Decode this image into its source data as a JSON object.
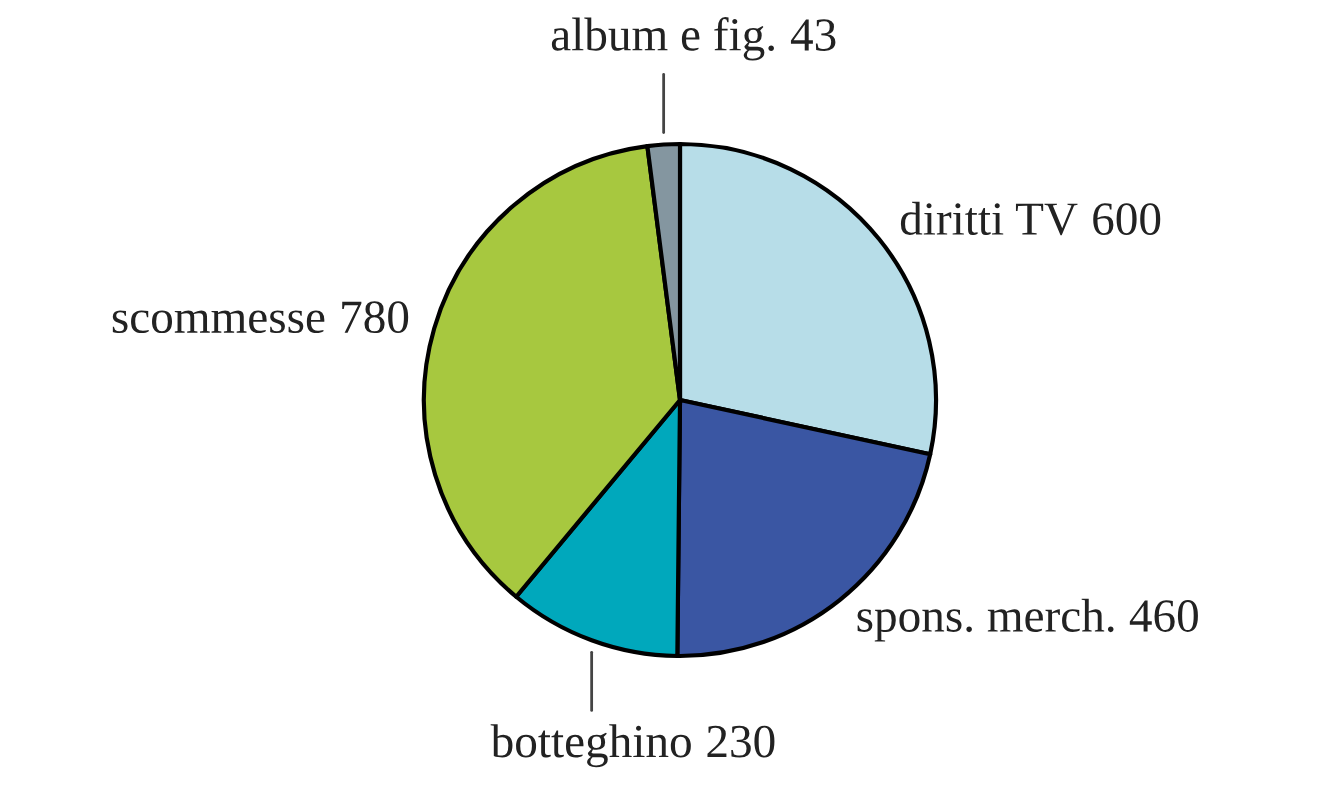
{
  "chart_data": {
    "type": "pie",
    "categories": [
      "diritti TV",
      "spons. merch.",
      "botteghino",
      "scommesse",
      "album e fig."
    ],
    "values": [
      600,
      460,
      230,
      780,
      43
    ],
    "colors": [
      "#b7dde8",
      "#3a56a3",
      "#00a8bc",
      "#a7c83f",
      "#8496a0"
    ],
    "data_labels": true
  }
}
